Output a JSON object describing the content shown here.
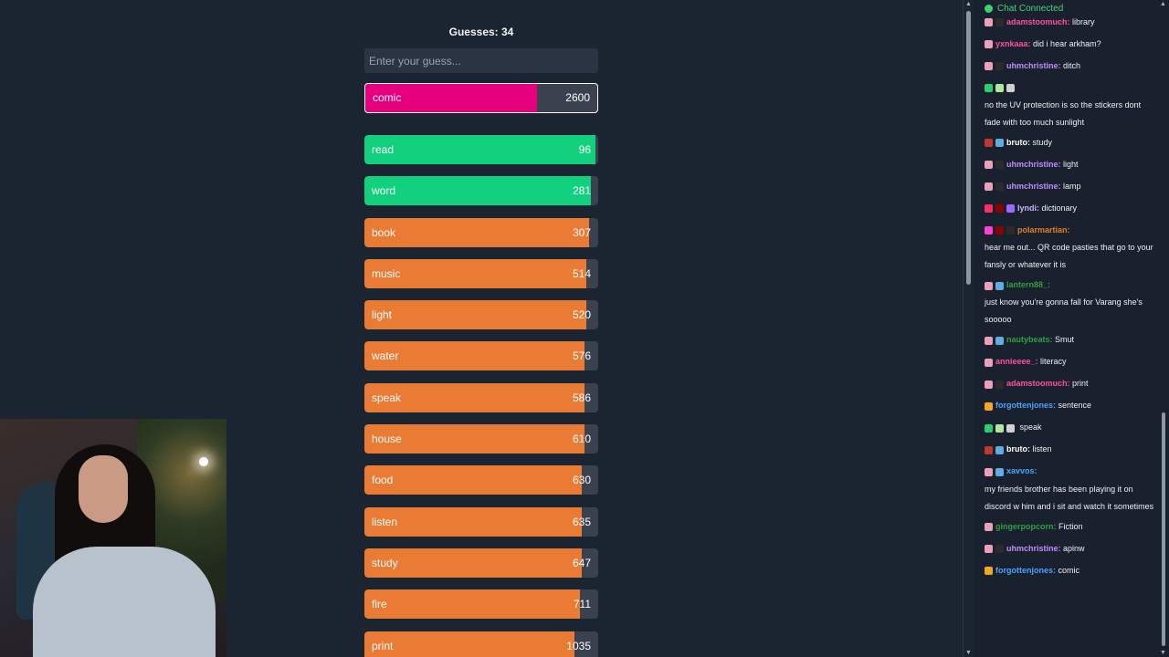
{
  "game": {
    "guesses_label": "Guesses: 34",
    "input_placeholder": "Enter your guess...",
    "current": {
      "word": "comic",
      "score": "2600",
      "fill": 0.74,
      "color": "#e6007e"
    },
    "guesses": [
      {
        "word": "read",
        "score": "96",
        "fill": 0.99,
        "color": "#12d17e"
      },
      {
        "word": "word",
        "score": "281",
        "fill": 0.97,
        "color": "#12d17e"
      },
      {
        "word": "book",
        "score": "307",
        "fill": 0.96,
        "color": "#ea7b35"
      },
      {
        "word": "music",
        "score": "514",
        "fill": 0.95,
        "color": "#ea7b35"
      },
      {
        "word": "light",
        "score": "520",
        "fill": 0.95,
        "color": "#ea7b35"
      },
      {
        "word": "water",
        "score": "576",
        "fill": 0.94,
        "color": "#ea7b35"
      },
      {
        "word": "speak",
        "score": "586",
        "fill": 0.94,
        "color": "#ea7b35"
      },
      {
        "word": "house",
        "score": "610",
        "fill": 0.94,
        "color": "#ea7b35"
      },
      {
        "word": "food",
        "score": "630",
        "fill": 0.93,
        "color": "#ea7b35"
      },
      {
        "word": "listen",
        "score": "635",
        "fill": 0.93,
        "color": "#ea7b35"
      },
      {
        "word": "study",
        "score": "647",
        "fill": 0.93,
        "color": "#ea7b35"
      },
      {
        "word": "fire",
        "score": "711",
        "fill": 0.92,
        "color": "#ea7b35"
      },
      {
        "word": "print",
        "score": "1035",
        "fill": 0.9,
        "color": "#ea7b35"
      }
    ]
  },
  "chat": {
    "status": "Chat Connected",
    "status_color": "#49d17a",
    "messages": [
      {
        "user": "adamstoomuch:",
        "text": "library",
        "color": "#ff4fa3",
        "badges": [
          "#e9a0b8",
          "#2b2b2b"
        ]
      },
      {
        "user": "yxnkaaa:",
        "text": "did i hear arkham?",
        "color": "#ff4fa3",
        "badges": [
          "#e9a0b8"
        ]
      },
      {
        "user": "uhmchristine:",
        "text": "ditch",
        "color": "#c08cff",
        "badges": [
          "#e9a0b8",
          "#2b2b2b"
        ]
      },
      {
        "user": "",
        "text": "no the UV protection is so the stickers dont fade with too much sunlight",
        "color": "#2ea043",
        "badges": [
          "#2ecc71",
          "#b3e5a0",
          "#d0d0d0"
        ],
        "block": true
      },
      {
        "user": "bruto:",
        "text": "study",
        "color": "#ffffff",
        "badges": [
          "#c0392b",
          "#5dade2"
        ]
      },
      {
        "user": "uhmchristine:",
        "text": "light",
        "color": "#c08cff",
        "badges": [
          "#e9a0b8",
          "#2b2b2b"
        ]
      },
      {
        "user": "uhmchristine:",
        "text": "lamp",
        "color": "#c08cff",
        "badges": [
          "#e9a0b8",
          "#2b2b2b"
        ]
      },
      {
        "user": "lyndi:",
        "text": "dictionary",
        "color": "#c7b3ff",
        "badges": [
          "#ff2e63",
          "#8b0000",
          "#9b6bff"
        ]
      },
      {
        "user": "polarmartian:",
        "text": "hear me out... QR code pasties that go to your fansly or whatever it is",
        "color": "#e67e22",
        "badges": [
          "#ff3fd8",
          "#8b0000",
          "#2b2b2b"
        ],
        "block": true
      },
      {
        "user": "lantern88_:",
        "text": "just know you're gonna fall for Varang she's sooooo",
        "color": "#2ea043",
        "badges": [
          "#e9a0b8",
          "#5dade2"
        ],
        "block": true
      },
      {
        "user": "nautybeats:",
        "text": "Smut",
        "color": "#2ea043",
        "badges": [
          "#e9a0b8",
          "#5dade2"
        ]
      },
      {
        "user": "annieeee_:",
        "text": "literacy",
        "color": "#ff4fa3",
        "badges": [
          "#e9a0b8"
        ]
      },
      {
        "user": "adamstoomuch:",
        "text": "print",
        "color": "#ff4fa3",
        "badges": [
          "#e9a0b8",
          "#2b2b2b"
        ]
      },
      {
        "user": "forgottenjones:",
        "text": "sentence",
        "color": "#4aa3ff",
        "badges": [
          "#f5a623"
        ]
      },
      {
        "user": "",
        "text": "speak",
        "color": "#ff2e2e",
        "badges": [
          "#2ecc71",
          "#b3e5a0",
          "#d0d0d0"
        ]
      },
      {
        "user": "bruto:",
        "text": "listen",
        "color": "#ffffff",
        "badges": [
          "#c0392b",
          "#5dade2"
        ]
      },
      {
        "user": "xavvos:",
        "text": "my friends brother has been playing it on discord w him and i sit and watch it sometimes",
        "color": "#4aa3ff",
        "badges": [
          "#e9a0b8",
          "#5dade2"
        ],
        "block": true
      },
      {
        "user": "gingerpopcorn:",
        "text": "Fiction",
        "color": "#2ea043",
        "badges": [
          "#e9a0b8"
        ]
      },
      {
        "user": "uhmchristine:",
        "text": "apinw",
        "color": "#c08cff",
        "badges": [
          "#e9a0b8",
          "#2b2b2b"
        ]
      },
      {
        "user": "forgottenjones:",
        "text": "comic",
        "color": "#4aa3ff",
        "badges": [
          "#f5a623"
        ]
      }
    ]
  }
}
